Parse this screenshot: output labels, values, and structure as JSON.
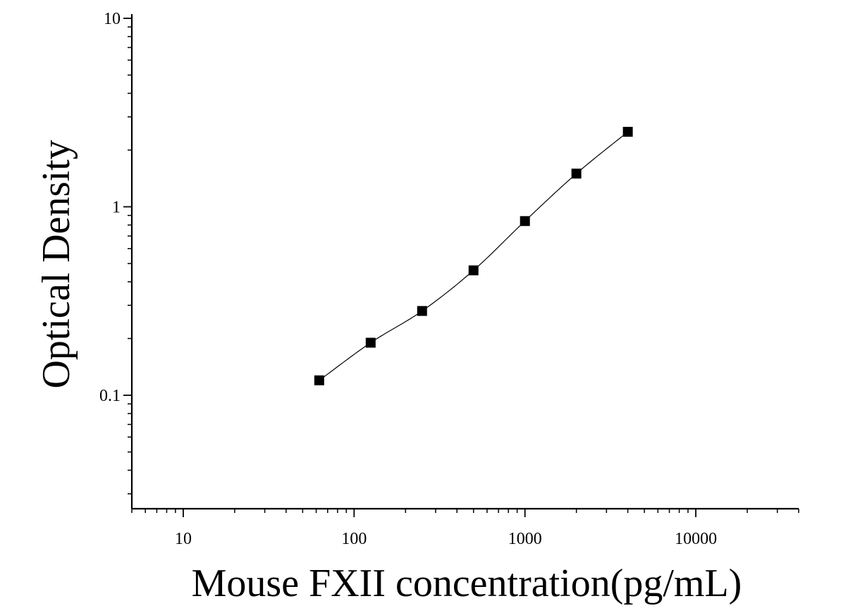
{
  "chart_data": {
    "type": "scatter",
    "title": "",
    "xlabel": "Mouse FXII concentration(pg/mL)",
    "ylabel": "Optical Density",
    "x_scale": "log",
    "y_scale": "log",
    "xlim": [
      5,
      40000
    ],
    "ylim": [
      0.025,
      10
    ],
    "x_ticks": [
      {
        "value": 10,
        "label": "10"
      },
      {
        "value": 100,
        "label": "100"
      },
      {
        "value": 1000,
        "label": "1000"
      },
      {
        "value": 10000,
        "label": "10000"
      }
    ],
    "y_ticks": [
      {
        "value": 0.1,
        "label": "0.1"
      },
      {
        "value": 1,
        "label": "1"
      },
      {
        "value": 10,
        "label": "10"
      }
    ],
    "grid": false,
    "legend": "none",
    "series": [
      {
        "marker": "square",
        "color": "#000000",
        "x": [
          62.5,
          125,
          250,
          500,
          1000,
          2000,
          4000
        ],
        "y": [
          0.12,
          0.19,
          0.28,
          0.46,
          0.84,
          1.5,
          2.5
        ]
      }
    ],
    "fit_curve": {
      "color": "#000000",
      "x_range": [
        62.5,
        4000
      ]
    }
  }
}
